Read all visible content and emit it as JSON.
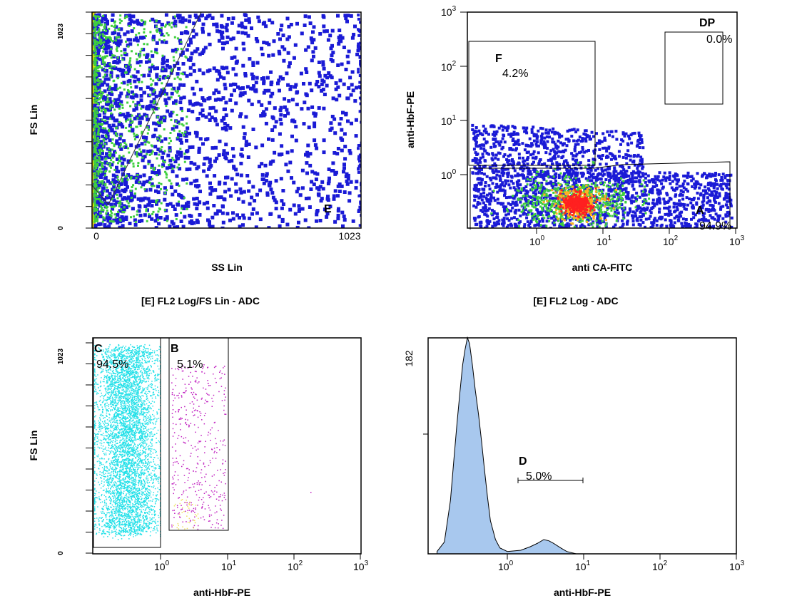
{
  "panels": {
    "p1": {
      "xlabel": "SS Lin",
      "ylabel": "FS Lin",
      "x_ticks": [
        "0",
        "1023"
      ],
      "y_ticks": [
        "0",
        "1023"
      ],
      "gates": [
        {
          "label": "E"
        }
      ]
    },
    "p2": {
      "xlabel": "anti CA-FITC",
      "ylabel": "anti-HbF-PE",
      "gates": [
        {
          "label": "F",
          "percent": "4.2%"
        },
        {
          "label": "DP",
          "percent": "0.0%"
        },
        {
          "label": "A",
          "percent": "94.9%"
        }
      ]
    },
    "p3": {
      "title": "[E] FL2 Log/FS Lin - ADC",
      "xlabel": "anti-HbF-PE",
      "ylabel": "FS Lin",
      "y_ticks": [
        "0",
        "1023"
      ],
      "gates": [
        {
          "label": "C",
          "percent": "94.5%"
        },
        {
          "label": "B",
          "percent": "5.1%"
        }
      ]
    },
    "p4": {
      "title": "[E] FL2 Log - ADC",
      "xlabel": "anti-HbF-PE",
      "y_ticks": [
        "182"
      ],
      "gates": [
        {
          "label": "D",
          "percent": "5.0%"
        }
      ]
    }
  },
  "log_ticks": [
    "10",
    "10",
    "10",
    "10"
  ],
  "log_exponents": [
    "0",
    "1",
    "2",
    "3"
  ],
  "p2_ytick_exponents": [
    "0",
    "1",
    "2",
    "3"
  ],
  "colors": {
    "density_low": "#1a1ad6",
    "density_mid": "#3ecf3e",
    "density_high": "#ff2020",
    "gate_c": "#22e0e8",
    "gate_b": "#c020c0",
    "histogram_fill": "#a8c8ee"
  },
  "chart_data": [
    {
      "type": "scatter",
      "xlabel": "SS Lin",
      "ylabel": "FS Lin",
      "xscale": "linear",
      "yscale": "linear",
      "xlim": [
        0,
        1023
      ],
      "ylim": [
        0,
        1023
      ],
      "gates": [
        {
          "name": "E"
        }
      ]
    },
    {
      "type": "scatter",
      "xlabel": "anti CA-FITC",
      "ylabel": "anti-HbF-PE",
      "xscale": "log",
      "yscale": "log",
      "gates": [
        {
          "name": "F",
          "percent": 4.2
        },
        {
          "name": "DP",
          "percent": 0.0
        },
        {
          "name": "A",
          "percent": 94.9
        }
      ]
    },
    {
      "type": "scatter",
      "title": "[E] FL2 Log/FS Lin - ADC",
      "xlabel": "anti-HbF-PE",
      "ylabel": "FS Lin",
      "xscale": "log",
      "yscale": "linear",
      "ylim": [
        0,
        1023
      ],
      "gates": [
        {
          "name": "C",
          "percent": 94.5
        },
        {
          "name": "B",
          "percent": 5.1
        }
      ]
    },
    {
      "type": "area",
      "title": "[E] FL2 Log - ADC",
      "xlabel": "anti-HbF-PE",
      "xscale": "log",
      "ylim": [
        0,
        182
      ],
      "x": [
        0.12,
        0.15,
        0.18,
        0.2,
        0.22,
        0.24,
        0.26,
        0.28,
        0.3,
        0.32,
        0.35,
        0.38,
        0.42,
        0.46,
        0.5,
        0.55,
        0.6,
        0.7,
        0.8,
        1.0,
        1.5,
        2.0,
        2.5,
        3.0,
        3.5,
        4.0,
        5.0,
        6.0,
        8.0
      ],
      "values": [
        2,
        10,
        45,
        80,
        112,
        138,
        160,
        172,
        182,
        176,
        160,
        140,
        118,
        95,
        72,
        48,
        28,
        12,
        5,
        2,
        3,
        6,
        9,
        12,
        11,
        9,
        5,
        2,
        0
      ],
      "gates": [
        {
          "name": "D",
          "percent": 5.0
        }
      ]
    }
  ]
}
